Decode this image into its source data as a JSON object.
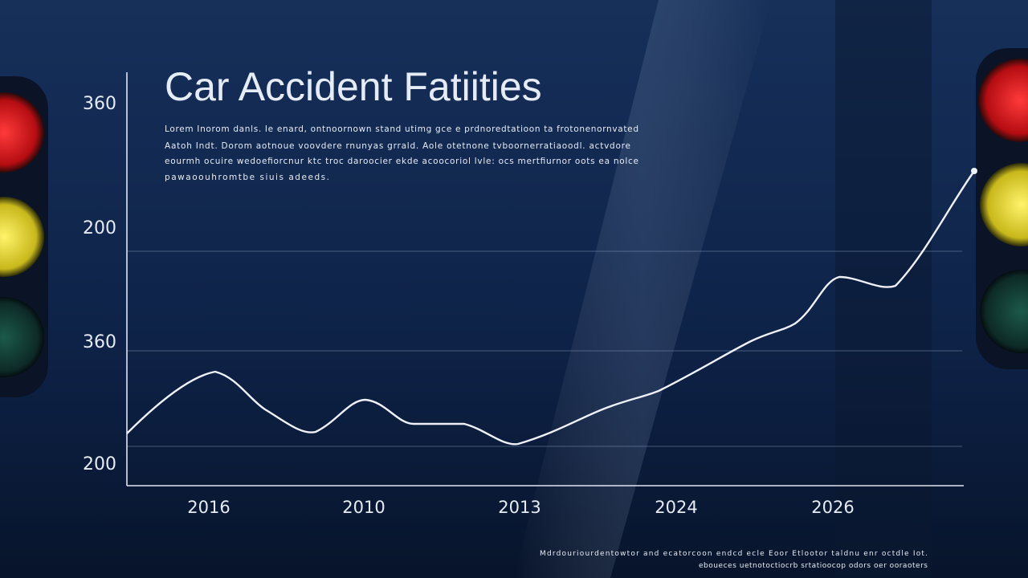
{
  "title": "Car Accident Fatiities",
  "description": [
    "Lorem Inorom danls. Ie enard, ontnoornown stand utimg gce e prdnoredtatioon ta frotonenornvated",
    "Aatoh Indt. Dorom aotnoue voovdere rnunyas grrald. Aole otetnone tvboornerratiaoodl. actvdore",
    "eourmh ocuire wedoefiorcnur ktc troc daroocier ekde acoocoriol lvle: ocs mertfiurnor oots ea nolce",
    "pawaoouhromtbe siuis adeeds."
  ],
  "y_axis_labels": [
    "360",
    "200",
    "360",
    "200"
  ],
  "x_axis_labels": [
    "2016",
    "2010",
    "2013",
    "2024",
    "2026"
  ],
  "footnote": [
    "Mdrdouriourdentowtor  and  ecatorcoon endcd ecle  Eoor  Etlootor taldnu  enr  octdle Iot.",
    "eboueces uetnotoctiocrb srtatioocop  odors oer ooraoters"
  ]
}
